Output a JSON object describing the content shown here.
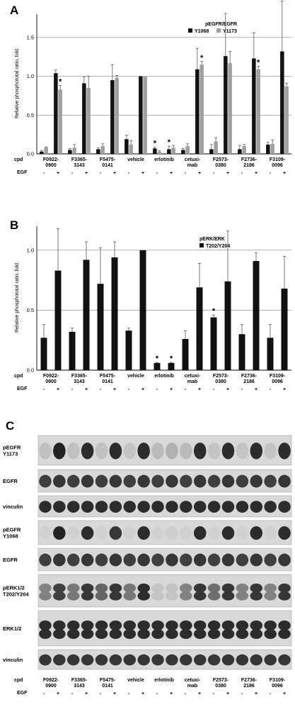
{
  "panels": [
    {
      "id": "A",
      "letter": "A",
      "ylabel": "Relative phosphototal ratio, fold",
      "legend": {
        "title": "pEGFR/EGFR",
        "entries": [
          "Y1068",
          "Y1173"
        ]
      },
      "y_ticks": [
        "0.0",
        "0.5",
        "1.0",
        "1.5"
      ]
    },
    {
      "id": "B",
      "letter": "B",
      "ylabel": "Relative phosphototal ratio, fold",
      "legend": {
        "title": "pERK/ERK",
        "entries": [
          "T202/Y204"
        ]
      },
      "y_ticks": [
        "0.0",
        "0.5",
        "1.0"
      ]
    },
    {
      "id": "C",
      "letter": "C",
      "blots": [
        {
          "label": [
            "pEGFR",
            "Y1173"
          ]
        },
        {
          "label": [
            "EGFR"
          ]
        },
        {
          "label": [
            "vinculin"
          ]
        },
        {
          "label": [
            "pEGFR",
            "Y1068"
          ]
        },
        {
          "label": [
            "EGFR"
          ]
        },
        {
          "label": [
            "pERK1/2",
            "T202/Y204"
          ]
        },
        {
          "label": [
            "ERK1/2"
          ]
        },
        {
          "label": [
            "vinculin"
          ]
        }
      ]
    }
  ],
  "axis_labels": {
    "cpd": "cpd",
    "egf": "EGF",
    "minus": "-",
    "plus": "+"
  },
  "groups": [
    [
      "F0922-",
      "0900"
    ],
    [
      "F3365-",
      "3143"
    ],
    [
      "F5475-",
      "0141"
    ],
    [
      "vehicle"
    ],
    [
      "erlotinib"
    ],
    [
      "cetuxi-",
      "mab"
    ],
    [
      "F2573-",
      "0380"
    ],
    [
      "F2736-",
      "2186"
    ],
    [
      "F3109-",
      "0096"
    ]
  ],
  "egf_pattern": [
    "-",
    "+"
  ],
  "chart_data": [
    {
      "type": "bar",
      "panel": "A",
      "title": "pEGFR/EGFR",
      "ylabel": "Relative phosphototal ratio, fold",
      "ylim": [
        0,
        1.8
      ],
      "grid": true,
      "legend_position": "top-right",
      "categories": [
        "F0922-0900 -",
        "F0922-0900 +",
        "F3365-3143 -",
        "F3365-3143 +",
        "F5475-0141 -",
        "F5475-0141 +",
        "vehicle -",
        "vehicle +",
        "erlotinib -",
        "erlotinib +",
        "cetuximab -",
        "cetuximab +",
        "F2573-0380 -",
        "F2573-0380 +",
        "F2736-2186 -",
        "F2736-2186 +",
        "F3109-0096 -",
        "F3109-0096 +"
      ],
      "series": [
        {
          "name": "Y1068",
          "color": "#111111",
          "values": [
            0.03,
            1.04,
            0.05,
            0.91,
            0.06,
            0.95,
            0.19,
            1.0,
            0.07,
            0.06,
            0.05,
            1.09,
            0.06,
            1.26,
            0.06,
            1.23,
            0.12,
            1.32
          ],
          "errors": [
            0.015,
            0.04,
            0.02,
            0.08,
            0.02,
            0.2,
            0.05,
            0.0,
            0.015,
            0.04,
            0.02,
            0.27,
            0.06,
            0.55,
            0.05,
            0.33,
            0.03,
            0.65
          ]
        },
        {
          "name": "Y1173",
          "color": "#a0a0a0",
          "values": [
            0.08,
            0.83,
            0.08,
            0.85,
            0.1,
            0.98,
            0.12,
            1.0,
            0.03,
            0.08,
            0.1,
            1.15,
            0.16,
            1.17,
            0.1,
            1.09,
            0.13,
            0.87
          ],
          "errors": [
            0.01,
            0.05,
            0.04,
            0.15,
            0.03,
            0.03,
            0.05,
            0.0,
            0.01,
            0.03,
            0.03,
            0.04,
            0.05,
            0.15,
            0.02,
            0.04,
            0.05,
            0.04
          ]
        }
      ],
      "significance": [
        {
          "category": "F0922-0900 +",
          "series": "Y1173",
          "mark": "*"
        },
        {
          "category": "erlotinib -",
          "series": "Y1068",
          "mark": "*"
        },
        {
          "category": "erlotinib +",
          "series": "Y1068",
          "mark": "*"
        },
        {
          "category": "cetuximab +",
          "series": "Y1173",
          "mark": "*"
        },
        {
          "category": "F2736-2186 +",
          "series": "Y1173",
          "mark": "*"
        }
      ]
    },
    {
      "type": "bar",
      "panel": "B",
      "title": "pERK/ERK",
      "ylabel": "Relative phosphototal ratio, fold",
      "ylim": [
        0,
        1.2
      ],
      "grid": true,
      "legend_position": "top-right",
      "categories": [
        "F0922-0900 -",
        "F0922-0900 +",
        "F3365-3143 -",
        "F3365-3143 +",
        "F5475-0141 -",
        "F5475-0141 +",
        "vehicle -",
        "vehicle +",
        "erlotinib -",
        "erlotinib +",
        "cetuximab -",
        "cetuximab +",
        "F2573-0380 -",
        "F2573-0380 +",
        "F2736-2186 -",
        "F2736-2186 +",
        "F3109-0096 -",
        "F3109-0096 +"
      ],
      "series": [
        {
          "name": "T202/Y204",
          "color": "#111111",
          "values": [
            0.27,
            0.83,
            0.32,
            0.92,
            0.72,
            0.94,
            0.33,
            1.0,
            0.06,
            0.06,
            0.26,
            0.69,
            0.44,
            0.74,
            0.3,
            0.91,
            0.27,
            0.68
          ],
          "errors": [
            0.11,
            0.35,
            0.03,
            0.15,
            0.3,
            0.13,
            0.02,
            0.0,
            0.005,
            0.005,
            0.07,
            0.2,
            0.02,
            0.42,
            0.08,
            0.07,
            0.11,
            0.27
          ]
        }
      ],
      "significance": [
        {
          "category": "erlotinib -",
          "series": "T202/Y204",
          "mark": "*"
        },
        {
          "category": "erlotinib +",
          "series": "T202/Y204",
          "mark": "*"
        },
        {
          "category": "F2573-0380 -",
          "series": "T202/Y204",
          "mark": "*"
        }
      ]
    }
  ]
}
